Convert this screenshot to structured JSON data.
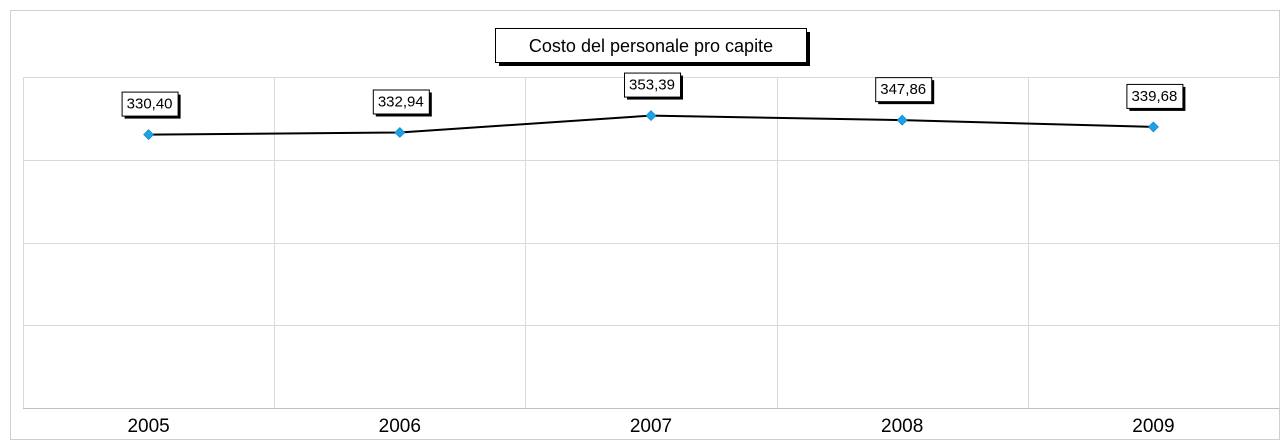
{
  "chart_data": {
    "type": "line",
    "title": "Costo del personale pro capite",
    "xlabel": "",
    "ylabel": "",
    "categories": [
      "2005",
      "2006",
      "2007",
      "2008",
      "2009"
    ],
    "series": [
      {
        "values": [
          330.4,
          332.94,
          353.39,
          347.86,
          339.68
        ],
        "value_labels": [
          "330,40",
          "332,94",
          "353,39",
          "347,86",
          "339,68"
        ],
        "color": "#1ca3e6"
      }
    ],
    "ylim": [
      0,
      400
    ],
    "y_gridlines": [
      100,
      200,
      300,
      400
    ],
    "grid": true,
    "legend": "none",
    "line_color": "#000000",
    "marker": "diamond"
  }
}
